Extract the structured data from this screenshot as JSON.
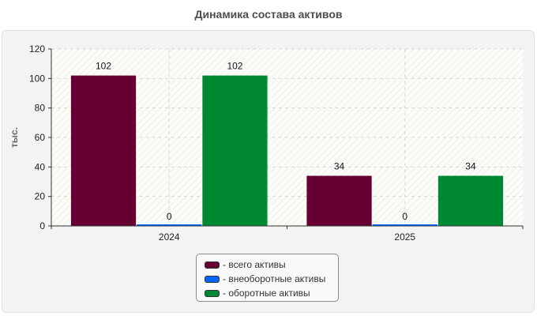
{
  "chart_data": {
    "type": "bar",
    "title": "Динамика состава активов",
    "ylabel": "тыс.",
    "xlabel": "",
    "categories": [
      "2024",
      "2025"
    ],
    "ylim": [
      0,
      120
    ],
    "yticks": [
      0,
      20,
      40,
      60,
      80,
      100,
      120
    ],
    "grid": true,
    "legend_position": "bottom",
    "series": [
      {
        "name": "- всего активы",
        "values": [
          102,
          34
        ],
        "color": "#660033"
      },
      {
        "name": "- внеоборотные активы",
        "values": [
          0,
          0
        ],
        "color": "#0066ff"
      },
      {
        "name": "- оборотные активы",
        "values": [
          102,
          34
        ],
        "color": "#008833"
      }
    ]
  }
}
